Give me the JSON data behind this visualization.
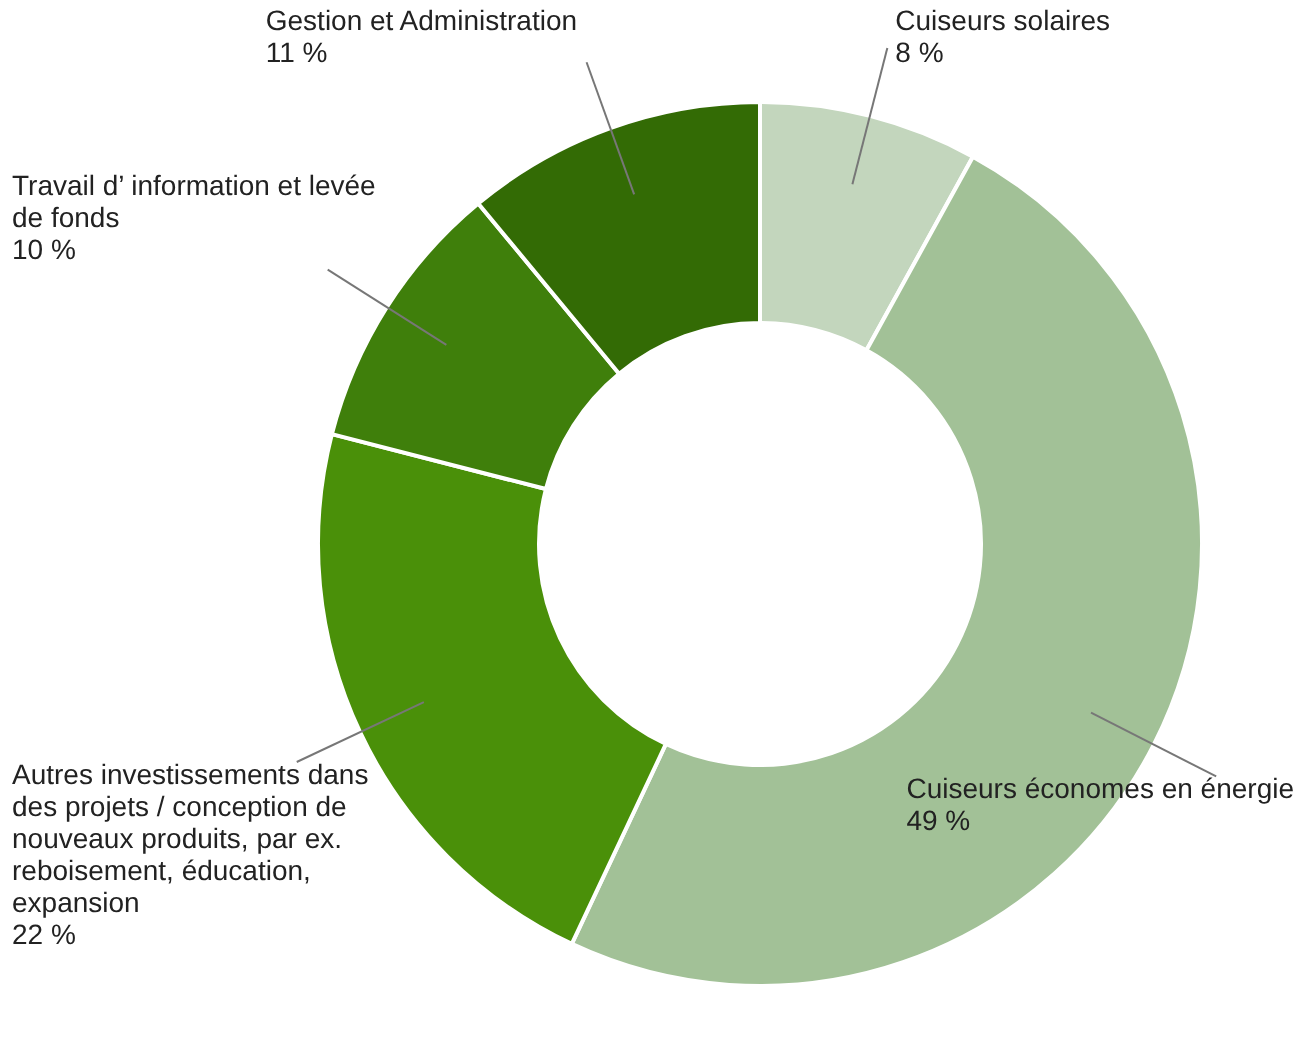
{
  "chart_data": {
    "type": "donut",
    "categories": [
      "Cuiseurs solaires",
      "Cuiseurs économes en énergie",
      "Autres investissements dans des projets / conception de nouveaux produits, par ex. reboisement, éducation, expansion",
      "Travail d’ information et levée de fonds",
      "Gestion et Administration"
    ],
    "values": [
      8,
      49,
      22,
      10,
      11
    ],
    "value_labels": [
      "8 %",
      "49 %",
      "22 %",
      "10 %",
      "11 %"
    ],
    "colors": [
      "#c3d6bd",
      "#a2c197",
      "#4a9009",
      "#3f7f0b",
      "#336b05"
    ],
    "legend": false
  }
}
